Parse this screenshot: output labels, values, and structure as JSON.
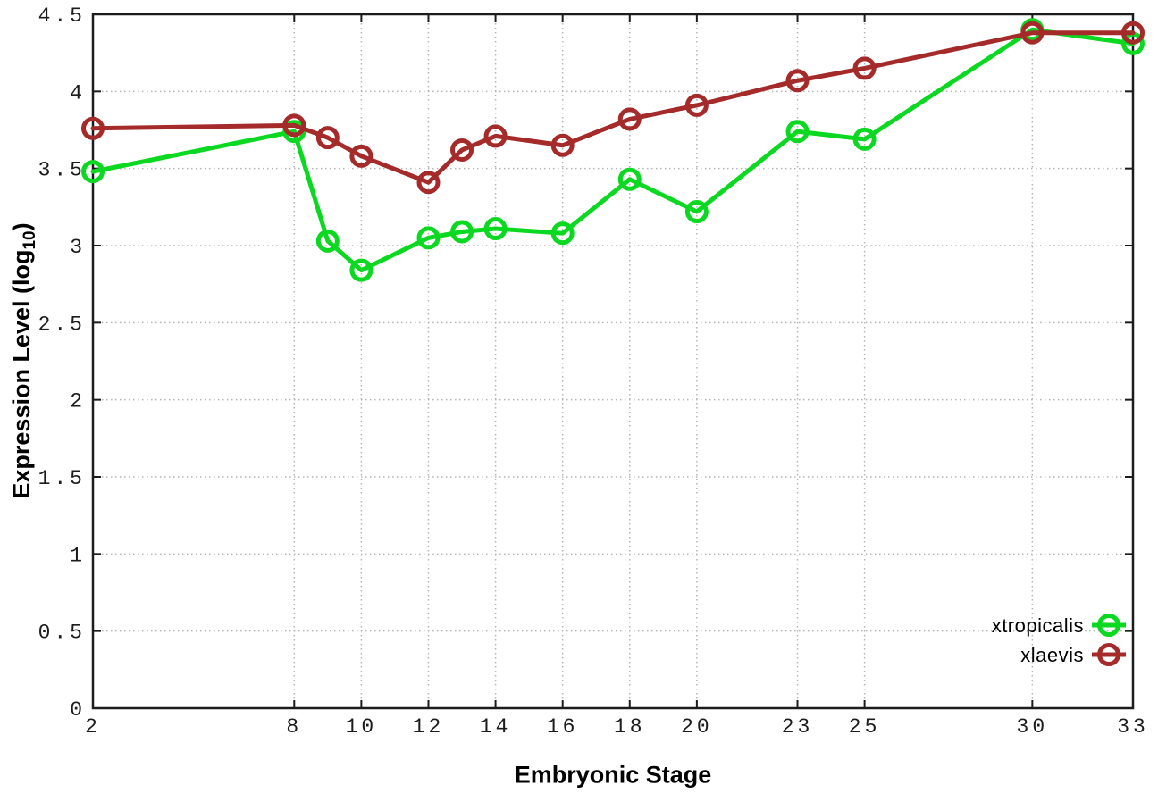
{
  "chart_data": {
    "type": "line",
    "title": "",
    "xlabel": "Embryonic Stage",
    "ylabel": "Expression Level (log10)",
    "ylabel_parts": {
      "prefix": "Expression Level (log",
      "sub": "10",
      "suffix": ")"
    },
    "x": [
      2,
      8,
      9,
      10,
      12,
      13,
      14,
      16,
      18,
      20,
      23,
      25,
      30,
      33
    ],
    "series": [
      {
        "name": "xtropicalis",
        "color": "#0bd820",
        "values": [
          3.48,
          3.74,
          3.03,
          2.84,
          3.05,
          3.09,
          3.11,
          3.08,
          3.43,
          3.22,
          3.74,
          3.69,
          4.4,
          4.31
        ]
      },
      {
        "name": "xlaevis",
        "color": "#a52a2a",
        "values": [
          3.76,
          3.78,
          3.7,
          3.58,
          3.41,
          3.62,
          3.71,
          3.65,
          3.82,
          3.91,
          4.07,
          4.15,
          4.38,
          4.38
        ]
      }
    ],
    "xlim": [
      2,
      33
    ],
    "ylim": [
      0,
      4.5
    ],
    "x_ticks": [
      2,
      8,
      10,
      12,
      14,
      16,
      18,
      20,
      23,
      25,
      30,
      33
    ],
    "x_tick_labels": [
      "2",
      "8",
      "10",
      "12",
      "14",
      "16",
      "18",
      "20",
      "23",
      "25",
      "30",
      "33"
    ],
    "y_ticks": [
      0,
      0.5,
      1,
      1.5,
      2,
      2.5,
      3,
      3.5,
      4,
      4.5
    ],
    "y_tick_labels": [
      "0",
      "0.5",
      "1",
      "1.5",
      "2",
      "2.5",
      "3",
      "3.5",
      "4",
      "4.5"
    ],
    "grid": true,
    "grid_style": "dotted",
    "legend_position": "inside-bottom-right",
    "legend_entries": [
      "xtropicalis",
      "xlaevis"
    ],
    "colors": {
      "axis": "#1c1c1c",
      "grid": "#b5b5b5",
      "background": "#ffffff",
      "text": "#000000"
    }
  }
}
